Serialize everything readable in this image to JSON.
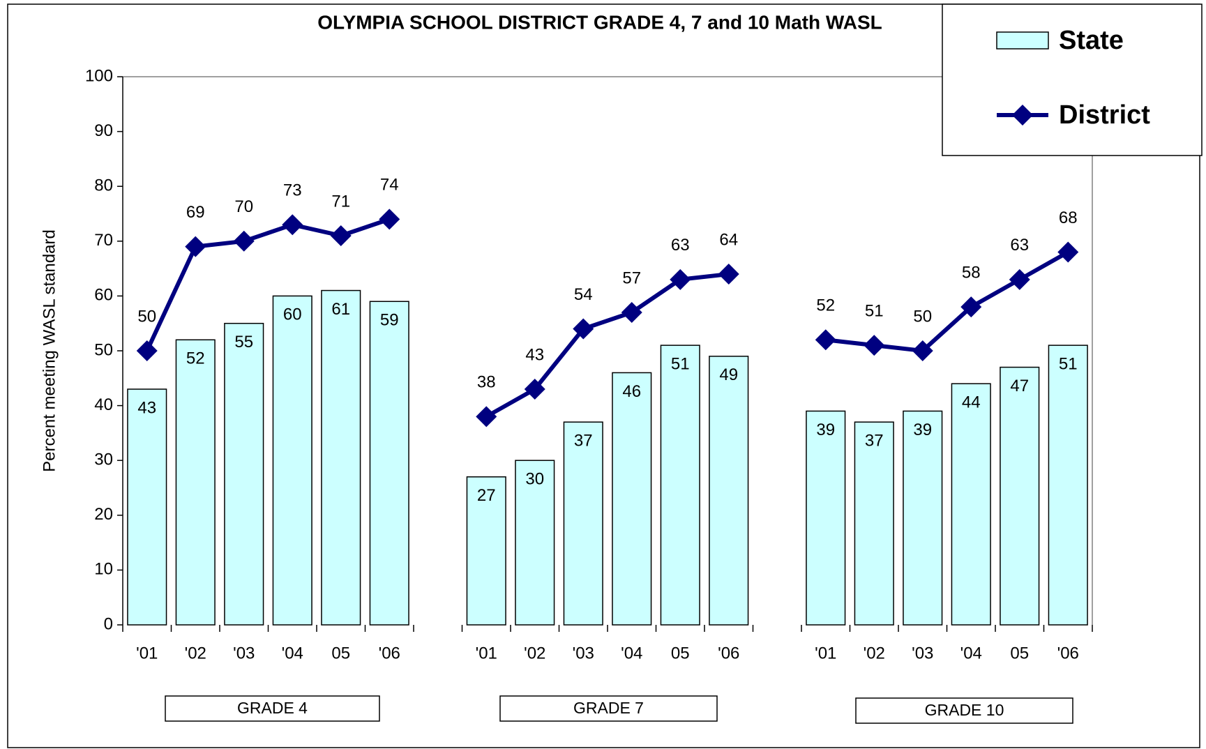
{
  "chart_data": {
    "type": "bar_line",
    "title": "OLYMPIA SCHOOL DISTRICT GRADE 4, 7 and 10 Math WASL",
    "ylabel": "Percent meeting WASL standard",
    "categories": [
      "'01",
      "'02",
      "'03",
      "'04",
      "05",
      "'06",
      null,
      "'01",
      "'02",
      "'03",
      "'04",
      "05",
      "'06",
      null,
      "'01",
      "'02",
      "'03",
      "'04",
      "05",
      "'06"
    ],
    "groups": [
      "GRADE 4",
      "GRADE 7",
      "GRADE 10"
    ],
    "series": [
      {
        "name": "State",
        "type": "bar",
        "color": "#ccffff",
        "values": [
          43,
          52,
          55,
          60,
          61,
          59,
          null,
          27,
          30,
          37,
          46,
          51,
          49,
          null,
          39,
          37,
          39,
          44,
          47,
          51
        ]
      },
      {
        "name": "District",
        "type": "line",
        "color": "#000080",
        "values": [
          50,
          69,
          70,
          73,
          71,
          74,
          null,
          38,
          43,
          54,
          57,
          63,
          64,
          null,
          52,
          51,
          50,
          58,
          63,
          68
        ]
      }
    ],
    "ylim": [
      0,
      100
    ],
    "yticks": [
      0,
      10,
      20,
      30,
      40,
      50,
      60,
      70,
      80,
      90,
      100
    ],
    "grid": false,
    "legend": "upper right"
  }
}
